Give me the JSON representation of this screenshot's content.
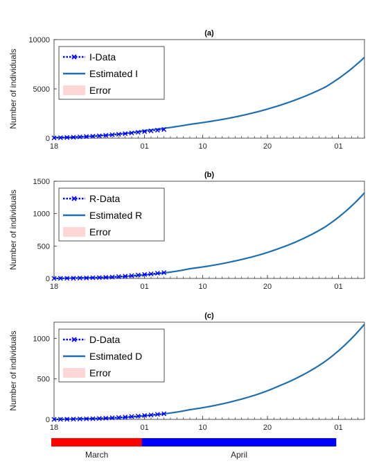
{
  "figure": {
    "month_bars": [
      {
        "label": "March",
        "color": "#ff0000",
        "start": "03-18",
        "end": "03-31"
      },
      {
        "label": "April",
        "color": "#0000ff",
        "start": "04-01",
        "end": "04-30"
      }
    ]
  },
  "chart_data": [
    {
      "type": "line",
      "title": "(a)",
      "ylabel": "Number of individuals",
      "xlabel": "",
      "xlim": [
        "03-18",
        "05-05"
      ],
      "ylim": [
        0,
        10000
      ],
      "yticks": [
        0,
        5000,
        10000
      ],
      "xticks": [
        {
          "date": "03-18",
          "label": "18"
        },
        {
          "date": "04-01",
          "label": "01"
        },
        {
          "date": "04-10",
          "label": "10"
        },
        {
          "date": "04-20",
          "label": "20"
        },
        {
          "date": "05-01",
          "label": "01"
        }
      ],
      "grid": false,
      "legend_position": "top-left",
      "series": [
        {
          "name": "I-Data",
          "style": "dotted-x",
          "color": "#0000ff",
          "x": [
            "03-18",
            "03-19",
            "03-20",
            "03-21",
            "03-22",
            "03-23",
            "03-24",
            "03-25",
            "03-26",
            "03-27",
            "03-28",
            "03-29",
            "03-30",
            "03-31",
            "04-01",
            "04-02",
            "04-03",
            "04-04"
          ],
          "y": [
            25,
            45,
            70,
            100,
            130,
            165,
            200,
            240,
            290,
            340,
            400,
            460,
            530,
            600,
            670,
            740,
            810,
            880
          ]
        },
        {
          "name": "Estimated I",
          "style": "solid",
          "color": "#1f6fb0",
          "x": [
            "03-18",
            "03-25",
            "04-01",
            "04-08",
            "04-15",
            "04-22",
            "04-29",
            "05-05"
          ],
          "y": [
            60,
            260,
            780,
            1400,
            2150,
            3350,
            5200,
            8200
          ]
        },
        {
          "name": "Error",
          "style": "band",
          "color": "#ffd6d6",
          "x": [],
          "y": []
        }
      ]
    },
    {
      "type": "line",
      "title": "(b)",
      "ylabel": "Number of individuals",
      "xlabel": "",
      "xlim": [
        "03-18",
        "05-05"
      ],
      "ylim": [
        0,
        1500
      ],
      "yticks": [
        0,
        500,
        1000,
        1500
      ],
      "xticks": [
        {
          "date": "03-18",
          "label": "18"
        },
        {
          "date": "04-01",
          "label": "01"
        },
        {
          "date": "04-10",
          "label": "10"
        },
        {
          "date": "04-20",
          "label": "20"
        },
        {
          "date": "05-01",
          "label": "01"
        }
      ],
      "grid": false,
      "legend_position": "top-left",
      "series": [
        {
          "name": "R-Data",
          "style": "dotted-x",
          "color": "#0000ff",
          "x": [
            "03-18",
            "03-19",
            "03-20",
            "03-21",
            "03-22",
            "03-23",
            "03-24",
            "03-25",
            "03-26",
            "03-27",
            "03-28",
            "03-29",
            "03-30",
            "03-31",
            "04-01",
            "04-02",
            "04-03",
            "04-04"
          ],
          "y": [
            0,
            1,
            2,
            3,
            5,
            7,
            10,
            13,
            17,
            22,
            28,
            35,
            43,
            52,
            61,
            70,
            80,
            90
          ]
        },
        {
          "name": "Estimated R",
          "style": "solid",
          "color": "#1f6fb0",
          "x": [
            "03-18",
            "03-25",
            "04-01",
            "04-08",
            "04-15",
            "04-22",
            "04-29",
            "05-05"
          ],
          "y": [
            0,
            15,
            55,
            150,
            270,
            470,
            800,
            1320
          ]
        },
        {
          "name": "Error",
          "style": "band",
          "color": "#ffd6d6",
          "x": [],
          "y": []
        }
      ]
    },
    {
      "type": "line",
      "title": "(c)",
      "ylabel": "Number of individuals",
      "xlabel": "",
      "xlim": [
        "03-18",
        "05-05"
      ],
      "ylim": [
        0,
        1200
      ],
      "yticks": [
        0,
        500,
        1000
      ],
      "xticks": [
        {
          "date": "03-18",
          "label": "18"
        },
        {
          "date": "04-01",
          "label": "01"
        },
        {
          "date": "04-10",
          "label": "10"
        },
        {
          "date": "04-20",
          "label": "20"
        },
        {
          "date": "05-01",
          "label": "01"
        }
      ],
      "grid": false,
      "legend_position": "top-left",
      "series": [
        {
          "name": "D-Data",
          "style": "dotted-x",
          "color": "#0000ff",
          "x": [
            "03-18",
            "03-19",
            "03-20",
            "03-21",
            "03-22",
            "03-23",
            "03-24",
            "03-25",
            "03-26",
            "03-27",
            "03-28",
            "03-29",
            "03-30",
            "03-31",
            "04-01",
            "04-02",
            "04-03",
            "04-04"
          ],
          "y": [
            0,
            1,
            2,
            3,
            5,
            7,
            9,
            12,
            15,
            19,
            24,
            29,
            35,
            41,
            48,
            55,
            62,
            70
          ]
        },
        {
          "name": "Estimated D",
          "style": "solid",
          "color": "#1f6fb0",
          "x": [
            "03-18",
            "03-25",
            "04-01",
            "04-08",
            "04-15",
            "04-22",
            "04-29",
            "05-05"
          ],
          "y": [
            0,
            12,
            45,
            120,
            230,
            420,
            720,
            1175
          ]
        },
        {
          "name": "Error",
          "style": "band",
          "color": "#ffd6d6",
          "x": [],
          "y": []
        }
      ]
    }
  ]
}
